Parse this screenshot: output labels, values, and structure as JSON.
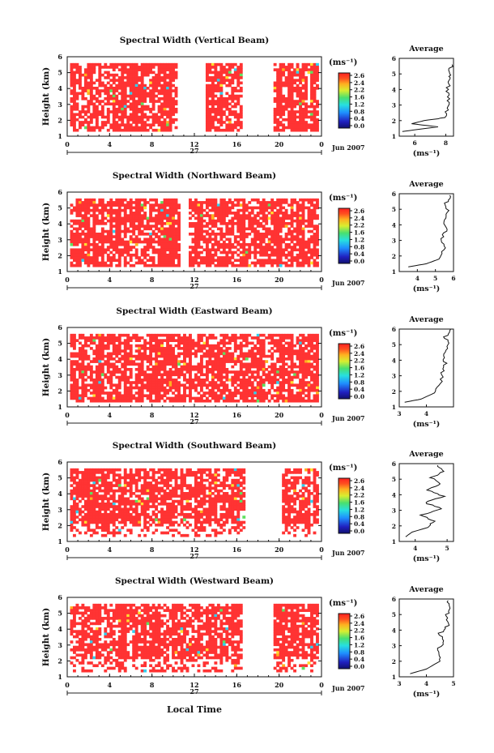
{
  "figure": {
    "xlabel": "Local Time",
    "day_label": "27",
    "date_label": "Jun 2007",
    "colorbar_unit": "(ms⁻¹)",
    "colorbar_ticks": [
      "2.6",
      "2.4",
      "2.2",
      "1.6",
      "1.2",
      "0.8",
      "0.4",
      "0.0"
    ],
    "avg_unit": "(ms⁻¹)"
  },
  "chart_data": [
    {
      "type": "heatmap",
      "title": "Spectral Width (Vertical Beam)",
      "ylabel": "Height (km)",
      "xlim": [
        0,
        24
      ],
      "ylim": [
        1,
        6
      ],
      "x_ticks": [
        "0",
        "4",
        "8",
        "12",
        "16",
        "20",
        "0"
      ],
      "y_ticks": [
        "1",
        "2",
        "3",
        "4",
        "5",
        "6"
      ],
      "gaps_local_time": [
        [
          10.3,
          13.0
        ],
        [
          16.5,
          19.5
        ]
      ],
      "dominant_color": "#ff3333",
      "average": {
        "title": "Average",
        "xlim": [
          5,
          8.5
        ],
        "x_ticks": [
          "6",
          "8"
        ],
        "ylim": [
          1,
          6
        ],
        "profile": [
          [
            5.2,
            1.3
          ],
          [
            7.5,
            1.6
          ],
          [
            5.8,
            1.8
          ],
          [
            6.6,
            2.0
          ],
          [
            8.0,
            2.2
          ],
          [
            8.1,
            2.8
          ],
          [
            8.2,
            3.4
          ],
          [
            8.1,
            4.0
          ],
          [
            8.3,
            4.6
          ],
          [
            8.2,
            5.0
          ],
          [
            8.4,
            5.6
          ]
        ]
      }
    },
    {
      "type": "heatmap",
      "title": "Spectral Width (Northward Beam)",
      "ylabel": "Height (km)",
      "xlim": [
        0,
        24
      ],
      "ylim": [
        1,
        6
      ],
      "x_ticks": [
        "0",
        "4",
        "8",
        "12",
        "16",
        "20",
        "0"
      ],
      "y_ticks": [
        "1",
        "2",
        "3",
        "4",
        "5",
        "6"
      ],
      "gaps_local_time": [
        [
          10.6,
          11.4
        ]
      ],
      "dominant_color": "#ff3333",
      "average": {
        "title": "Average",
        "xlim": [
          3,
          6
        ],
        "x_ticks": [
          "4",
          "5",
          "6"
        ],
        "ylim": [
          1,
          6
        ],
        "profile": [
          [
            3.5,
            1.3
          ],
          [
            4.5,
            1.5
          ],
          [
            5.2,
            1.8
          ],
          [
            5.5,
            2.4
          ],
          [
            5.3,
            3.0
          ],
          [
            5.6,
            3.6
          ],
          [
            5.5,
            4.2
          ],
          [
            5.7,
            4.8
          ],
          [
            5.6,
            5.4
          ],
          [
            5.8,
            5.9
          ]
        ]
      }
    },
    {
      "type": "heatmap",
      "title": "Spectral Width (Eastward Beam)",
      "ylabel": "Height (km)",
      "xlim": [
        0,
        24
      ],
      "ylim": [
        1,
        6
      ],
      "x_ticks": [
        "0",
        "4",
        "8",
        "12",
        "16",
        "20",
        "0"
      ],
      "y_ticks": [
        "1",
        "2",
        "3",
        "4",
        "5",
        "6"
      ],
      "gaps_local_time": [],
      "dominant_color": "#ff3333",
      "average": {
        "title": "Average",
        "xlim": [
          3,
          5
        ],
        "x_ticks": [
          "3",
          "4"
        ],
        "ylim": [
          1,
          6
        ],
        "profile": [
          [
            3.2,
            1.3
          ],
          [
            3.8,
            1.5
          ],
          [
            4.3,
            1.9
          ],
          [
            4.5,
            2.5
          ],
          [
            4.6,
            3.2
          ],
          [
            4.7,
            3.8
          ],
          [
            4.6,
            4.4
          ],
          [
            4.8,
            5.0
          ],
          [
            4.7,
            5.5
          ],
          [
            4.9,
            6.0
          ]
        ]
      }
    },
    {
      "type": "heatmap",
      "title": "Spectral Width (Southward Beam)",
      "ylabel": "Height (km)",
      "xlim": [
        0,
        24
      ],
      "ylim": [
        1,
        6
      ],
      "x_ticks": [
        "0",
        "4",
        "8",
        "12",
        "16",
        "20",
        "0"
      ],
      "y_ticks": [
        "1",
        "2",
        "3",
        "4",
        "5",
        "6"
      ],
      "gaps_local_time": [
        [
          16.8,
          20.2
        ]
      ],
      "dominant_color": "#ff3333",
      "average": {
        "title": "Average",
        "xlim": [
          3.5,
          5.2
        ],
        "x_ticks": [
          "4",
          "5"
        ],
        "ylim": [
          1,
          6
        ],
        "profile": [
          [
            3.7,
            1.3
          ],
          [
            3.9,
            1.6
          ],
          [
            4.4,
            1.9
          ],
          [
            4.6,
            2.3
          ],
          [
            4.2,
            2.7
          ],
          [
            4.8,
            3.1
          ],
          [
            4.3,
            3.5
          ],
          [
            4.9,
            3.9
          ],
          [
            4.4,
            4.3
          ],
          [
            4.8,
            4.7
          ],
          [
            4.5,
            5.1
          ],
          [
            4.9,
            5.5
          ],
          [
            4.7,
            5.9
          ]
        ]
      }
    },
    {
      "type": "heatmap",
      "title": "Spectral Width (Westward Beam)",
      "ylabel": "Height (km)",
      "xlim": [
        0,
        24
      ],
      "ylim": [
        1,
        6
      ],
      "x_ticks": [
        "0",
        "4",
        "8",
        "12",
        "16",
        "20",
        "0"
      ],
      "y_ticks": [
        "1",
        "2",
        "3",
        "4",
        "5",
        "6"
      ],
      "gaps_local_time": [
        [
          16.5,
          19.5
        ]
      ],
      "dominant_color": "#ff3333",
      "average": {
        "title": "Average",
        "xlim": [
          3,
          5
        ],
        "x_ticks": [
          "3",
          "4",
          "5"
        ],
        "ylim": [
          1,
          6
        ],
        "profile": [
          [
            3.4,
            1.2
          ],
          [
            4.0,
            1.5
          ],
          [
            4.5,
            2.0
          ],
          [
            4.4,
            2.6
          ],
          [
            4.6,
            3.2
          ],
          [
            4.5,
            3.8
          ],
          [
            4.8,
            4.3
          ],
          [
            4.7,
            4.9
          ],
          [
            4.9,
            5.4
          ],
          [
            4.8,
            5.9
          ]
        ]
      }
    }
  ]
}
